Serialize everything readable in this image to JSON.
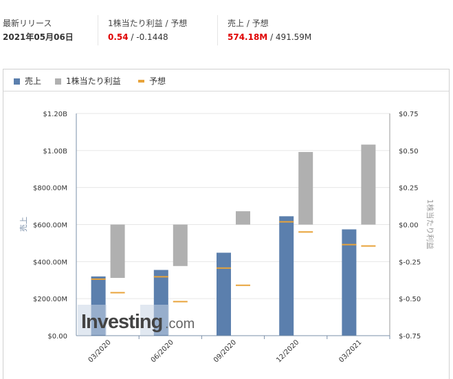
{
  "summary": {
    "release": {
      "label": "最新リリース",
      "value": "2021年05月06日"
    },
    "eps": {
      "label": "1株当たり利益 / 予想",
      "actual": "0.54",
      "sep": " / ",
      "forecast": "-0.1448"
    },
    "revenue": {
      "label": "売上 / 予想",
      "actual": "574.18M",
      "sep": " / ",
      "forecast": "491.59M"
    }
  },
  "legend": [
    {
      "label": "売上",
      "color": "#5b7fad",
      "kind": "bar"
    },
    {
      "label": "1株当たり利益",
      "color": "#b0b0b0",
      "kind": "bar"
    },
    {
      "label": "予想",
      "color": "#e8a33a",
      "kind": "line"
    }
  ],
  "watermark": {
    "brand": "Investing",
    "suffix": ".com"
  },
  "colors": {
    "revenue": "#5b7fad",
    "eps": "#b0b0b0",
    "forecast": "#e8a33a"
  },
  "chart_data": {
    "type": "bar",
    "categories": [
      "03/2020",
      "06/2020",
      "09/2020",
      "12/2020",
      "03/2021"
    ],
    "series": [
      {
        "name": "売上",
        "axis": "left",
        "values": [
          320000000,
          355000000,
          448000000,
          645000000,
          574180000
        ]
      },
      {
        "name": "1株当たり利益",
        "axis": "right",
        "values": [
          -0.36,
          -0.28,
          0.09,
          0.49,
          0.54
        ]
      }
    ],
    "forecasts": {
      "revenue": [
        305000000,
        318000000,
        365000000,
        615000000,
        491590000
      ],
      "eps": [
        -0.46,
        -0.52,
        -0.41,
        -0.05,
        -0.1448
      ]
    },
    "ylabel": "売上",
    "y2label": "1株当たり利益",
    "ylim": [
      0,
      1200000000
    ],
    "y2lim": [
      -0.75,
      0.75
    ],
    "yticks": [
      {
        "v": 0,
        "label": "$0.00"
      },
      {
        "v": 200000000,
        "label": "$200.00M"
      },
      {
        "v": 400000000,
        "label": "$400.00M"
      },
      {
        "v": 600000000,
        "label": "$600.00M"
      },
      {
        "v": 800000000,
        "label": "$800.00M"
      },
      {
        "v": 1000000000,
        "label": "$1.00B"
      },
      {
        "v": 1200000000,
        "label": "$1.20B"
      }
    ],
    "y2ticks": [
      {
        "v": -0.75,
        "label": "$-0.75"
      },
      {
        "v": -0.5,
        "label": "$-0.50"
      },
      {
        "v": -0.25,
        "label": "$-0.25"
      },
      {
        "v": 0,
        "label": "$0.00"
      },
      {
        "v": 0.25,
        "label": "$0.25"
      },
      {
        "v": 0.5,
        "label": "$0.50"
      },
      {
        "v": 0.75,
        "label": "$0.75"
      }
    ],
    "grid": true,
    "legend": "top-left"
  }
}
